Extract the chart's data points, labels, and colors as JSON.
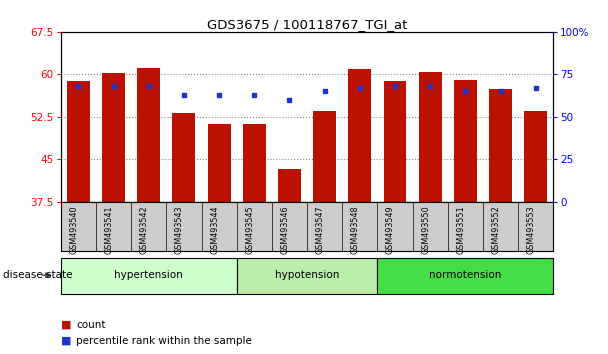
{
  "title": "GDS3675 / 100118767_TGI_at",
  "samples": [
    "GSM493540",
    "GSM493541",
    "GSM493542",
    "GSM493543",
    "GSM493544",
    "GSM493545",
    "GSM493546",
    "GSM493547",
    "GSM493548",
    "GSM493549",
    "GSM493550",
    "GSM493551",
    "GSM493552",
    "GSM493553"
  ],
  "count_values": [
    58.8,
    60.2,
    61.2,
    53.2,
    51.3,
    51.2,
    43.2,
    53.5,
    61.0,
    58.8,
    60.5,
    59.0,
    57.5,
    53.5
  ],
  "percentile_values": [
    68,
    68,
    68,
    63,
    63,
    63,
    60,
    65,
    67,
    68,
    68,
    65,
    65,
    67
  ],
  "ylim_left": [
    37.5,
    67.5
  ],
  "ylim_right": [
    0,
    100
  ],
  "yticks_left": [
    37.5,
    45.0,
    52.5,
    60.0,
    67.5
  ],
  "yticks_right": [
    0,
    25,
    50,
    75,
    100
  ],
  "bar_color": "#bb1100",
  "dot_color": "#2233cc",
  "groups": [
    {
      "label": "hypertension",
      "start": 0,
      "end": 5,
      "color": "#ccffcc"
    },
    {
      "label": "hypotension",
      "start": 5,
      "end": 9,
      "color": "#bbeeaa"
    },
    {
      "label": "normotension",
      "start": 9,
      "end": 14,
      "color": "#44dd44"
    }
  ],
  "disease_state_label": "disease state",
  "legend_count": "count",
  "legend_percentile": "percentile rank within the sample",
  "bg_white": "#ffffff",
  "tick_bg": "#cccccc"
}
